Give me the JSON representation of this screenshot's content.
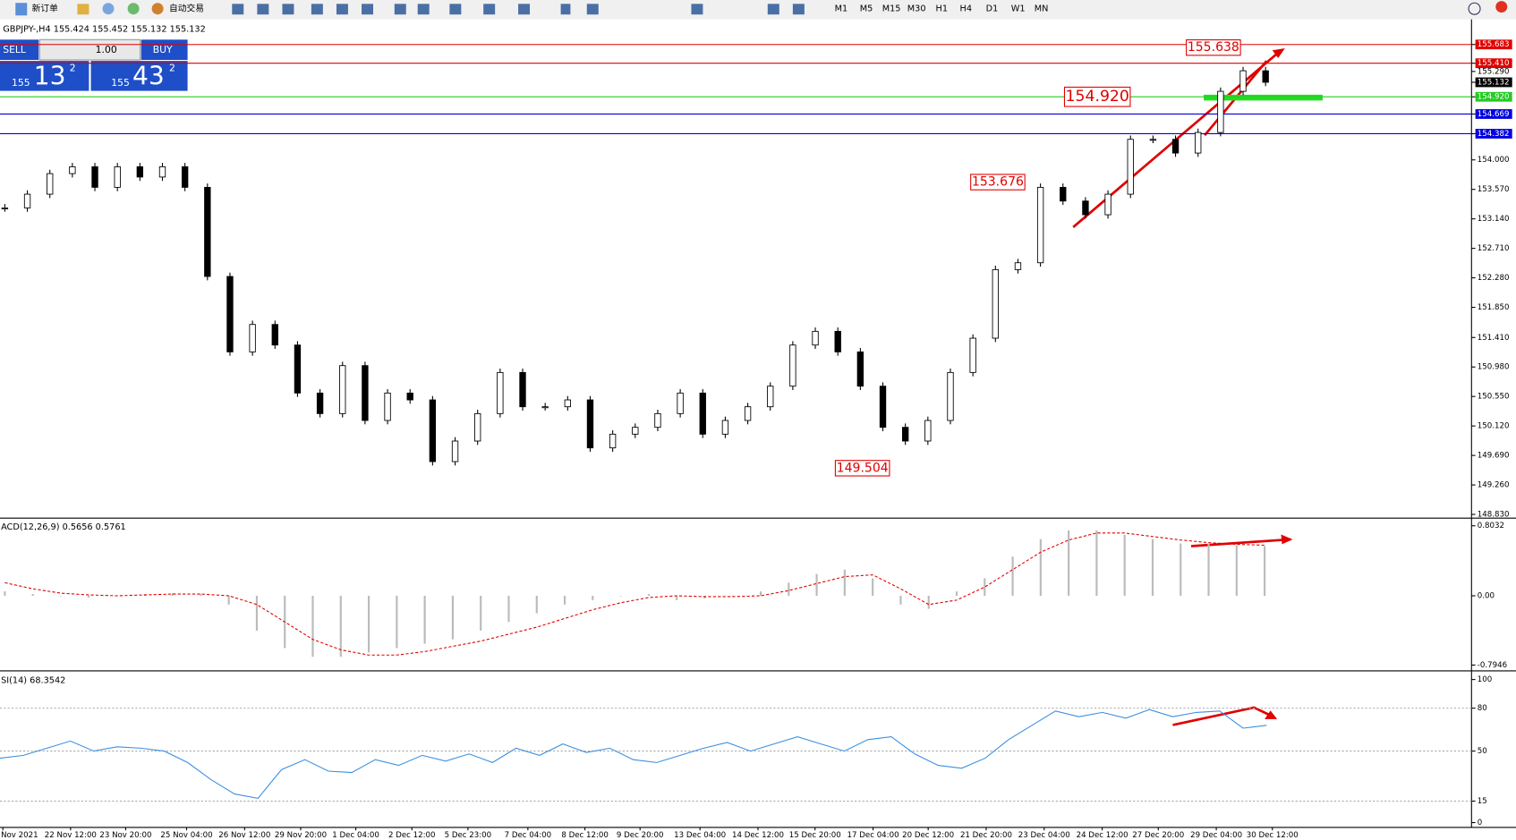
{
  "toolbar": {
    "new_order": "新订单",
    "auto_trade": "自动交易",
    "timeframes": [
      "M1",
      "M5",
      "M15",
      "M30",
      "H1",
      "H4",
      "D1",
      "W1",
      "MN"
    ]
  },
  "chart_header": "GBPJPY-,H4  155.424 155.452 155.132 155.132",
  "trade_panel": {
    "sell": "SELL",
    "lots": "1.00",
    "buy": "BUY",
    "sell_price": {
      "big": "155",
      "pips": "13",
      "point": "2"
    },
    "buy_price": {
      "big": "155",
      "pips": "43",
      "point": "2"
    }
  },
  "price_chart": {
    "ylim": [
      148.79,
      156.05
    ],
    "yticks": [
      {
        "value": 155.683,
        "label": "155.683",
        "color": "#e00000"
      },
      {
        "value": 155.41,
        "label": "155.410",
        "color": "#e00000"
      },
      {
        "value": 155.29,
        "label": "155.290"
      },
      {
        "value": 155.132,
        "label": "155.132",
        "color": "#000000"
      },
      {
        "value": 154.92,
        "label": "154.920",
        "color": "#22cc22"
      },
      {
        "value": 154.669,
        "label": "154.669",
        "color": "#0000e0"
      },
      {
        "value": 154.382,
        "label": "154.382",
        "color": "#0000e0"
      },
      {
        "value": 154.0,
        "label": "154.000"
      },
      {
        "value": 153.57,
        "label": "153.570"
      },
      {
        "value": 153.14,
        "label": "153.140"
      },
      {
        "value": 152.71,
        "label": "152.710"
      },
      {
        "value": 152.28,
        "label": "152.280"
      },
      {
        "value": 151.85,
        "label": "151.850"
      },
      {
        "value": 151.41,
        "label": "151.410"
      },
      {
        "value": 150.98,
        "label": "150.980"
      },
      {
        "value": 150.55,
        "label": "150.550"
      },
      {
        "value": 150.12,
        "label": "150.120"
      },
      {
        "value": 149.69,
        "label": "149.690"
      },
      {
        "value": 149.26,
        "label": "149.260"
      },
      {
        "value": 148.83,
        "label": "148.830"
      }
    ],
    "annotations": [
      {
        "value": 155.638,
        "label": "155.638"
      },
      {
        "value": 154.92,
        "label": "154.920"
      },
      {
        "value": 153.676,
        "label": "153.676"
      },
      {
        "value": 149.504,
        "label": "149.504"
      }
    ],
    "closes": [
      153.3,
      153.5,
      153.8,
      153.9,
      153.6,
      153.9,
      153.75,
      153.9,
      153.6,
      152.3,
      151.2,
      151.6,
      151.3,
      150.6,
      150.3,
      151.0,
      150.2,
      150.6,
      150.5,
      149.6,
      149.9,
      150.3,
      150.9,
      150.4,
      150.4,
      150.5,
      149.8,
      150.0,
      150.1,
      150.3,
      150.6,
      150.0,
      150.2,
      150.4,
      150.7,
      151.3,
      151.5,
      151.2,
      150.7,
      150.1,
      149.9,
      150.2,
      150.9,
      151.4,
      152.4,
      152.5,
      153.6,
      153.4,
      153.2,
      153.5,
      154.3,
      154.3,
      154.1,
      154.4,
      155.0,
      155.3,
      155.132
    ]
  },
  "macd": {
    "label": "ACD(12,26,9) 0.5656 0.5761",
    "ylim": [
      -0.85,
      0.88
    ],
    "yticks": [
      {
        "value": 0.8032,
        "label": "0.8032"
      },
      {
        "value": 0,
        "label": "0.00"
      },
      {
        "value": -0.7946,
        "label": "-0.7946"
      }
    ],
    "histogram": [
      0.05,
      0.02,
      0,
      -0.02,
      0,
      0.02,
      0.03,
      0.02,
      -0.1,
      -0.4,
      -0.6,
      -0.7,
      -0.7,
      -0.65,
      -0.6,
      -0.55,
      -0.5,
      -0.4,
      -0.3,
      -0.2,
      -0.1,
      -0.05,
      0,
      0.02,
      -0.05,
      -0.03,
      0,
      0.05,
      0.15,
      0.25,
      0.3,
      0.2,
      -0.1,
      -0.15,
      0.05,
      0.2,
      0.45,
      0.65,
      0.75,
      0.75,
      0.7,
      0.65,
      0.6,
      0.6,
      0.58,
      0.57
    ],
    "signal": [
      0.15,
      0.08,
      0.03,
      0.01,
      0.0,
      0.01,
      0.02,
      0.02,
      0.0,
      -0.1,
      -0.3,
      -0.5,
      -0.62,
      -0.68,
      -0.68,
      -0.64,
      -0.58,
      -0.52,
      -0.44,
      -0.36,
      -0.26,
      -0.16,
      -0.08,
      -0.02,
      0.0,
      -0.01,
      -0.01,
      0.0,
      0.06,
      0.14,
      0.22,
      0.24,
      0.08,
      -0.1,
      -0.05,
      0.1,
      0.3,
      0.5,
      0.64,
      0.72,
      0.72,
      0.68,
      0.64,
      0.61,
      0.59,
      0.58
    ]
  },
  "rsi": {
    "label": "SI(14) 68.3542",
    "ylim": [
      -2.7,
      105.4
    ],
    "yticks": [
      100,
      80,
      50,
      15,
      0
    ],
    "levels": [
      80,
      50,
      15
    ],
    "values": [
      45,
      47,
      52,
      57,
      50,
      53,
      52,
      50,
      42,
      30,
      20,
      17,
      37,
      44,
      36,
      35,
      44,
      40,
      47,
      43,
      48,
      42,
      52,
      47,
      55,
      49,
      52,
      44,
      42,
      47,
      52,
      56,
      50,
      55,
      60,
      55,
      50,
      58,
      60,
      48,
      40,
      38,
      45,
      58,
      68,
      78,
      74,
      77,
      73,
      79,
      74,
      77,
      78,
      66,
      68
    ]
  },
  "time_labels": [
    "Nov 2021",
    "22 Nov 12:00",
    "23 Nov 20:00",
    "25 Nov 04:00",
    "26 Nov 12:00",
    "29 Nov 20:00",
    "1 Dec 04:00",
    "2 Dec 12:00",
    "5 Dec 23:00",
    "7 Dec 04:00",
    "8 Dec 12:00",
    "9 Dec 20:00",
    "13 Dec 04:00",
    "14 Dec 12:00",
    "15 Dec 20:00",
    "17 Dec 04:00",
    "20 Dec 12:00",
    "21 Dec 20:00",
    "23 Dec 04:00",
    "24 Dec 12:00",
    "27 Dec 20:00",
    "29 Dec 04:00",
    "30 Dec 12:00"
  ]
}
